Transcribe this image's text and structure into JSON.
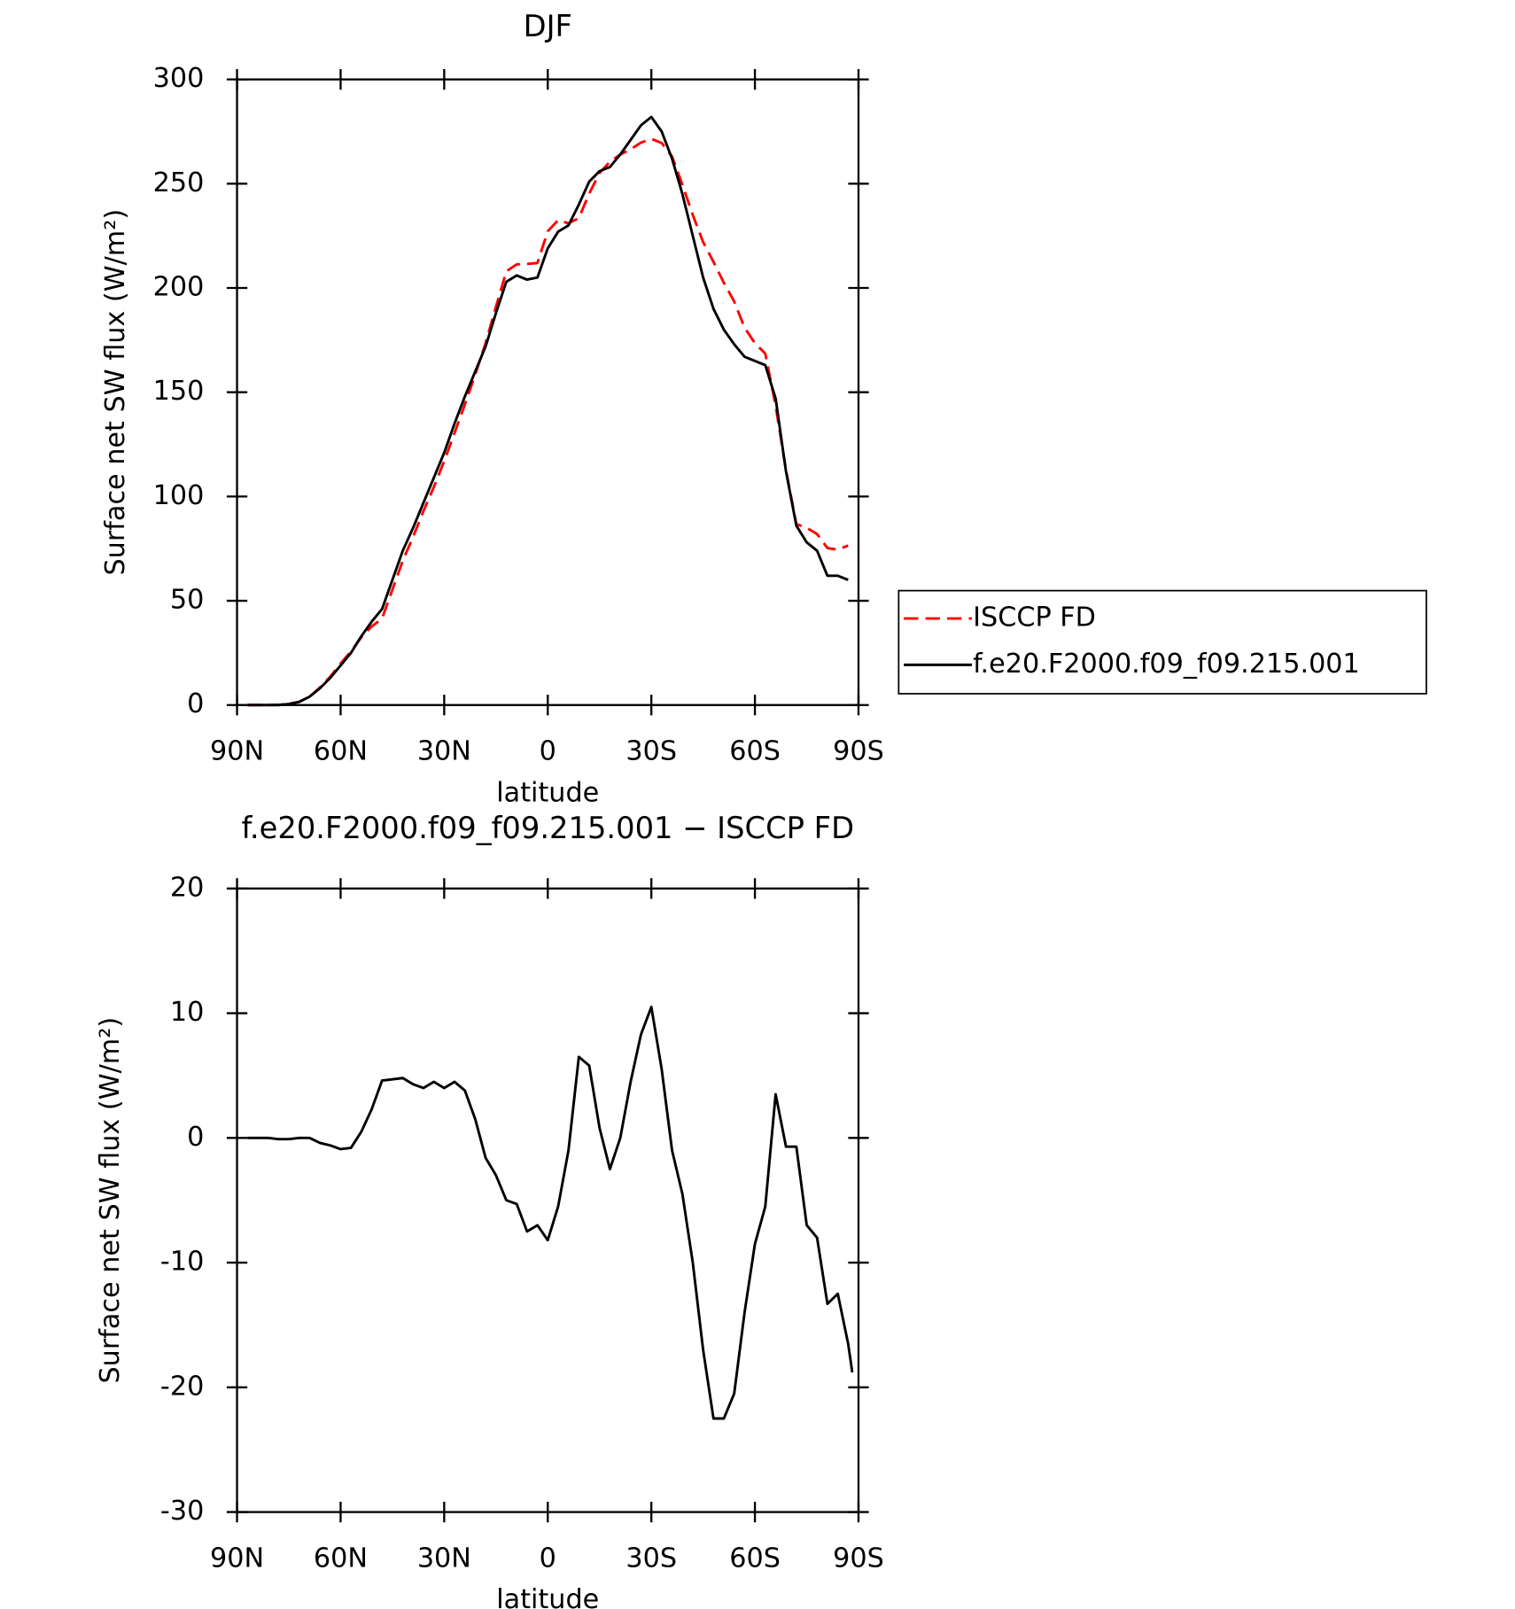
{
  "chart_data": [
    {
      "type": "line",
      "title": "DJF",
      "xlabel": "latitude",
      "ylabel": "Surface net SW flux (W/m²)",
      "x": [
        87,
        84,
        81,
        78,
        75,
        72,
        69,
        66,
        63,
        60,
        57,
        54,
        51,
        48,
        45,
        42,
        39,
        36,
        33,
        30,
        27,
        24,
        21,
        18,
        15,
        12,
        9,
        6,
        3,
        0,
        -3,
        -6,
        -9,
        -12,
        -15,
        -18,
        -21,
        -24,
        -27,
        -30,
        -33,
        -36,
        -39,
        -42,
        -45,
        -48,
        -51,
        -54,
        -57,
        -60,
        -63,
        -66,
        -69,
        -72,
        -75,
        -78,
        -81,
        -84,
        -87
      ],
      "series": [
        {
          "name": "ISCCP FD",
          "color": "#ff0000",
          "dash": true,
          "values": [
            0,
            0,
            0,
            0.1,
            0.6,
            1.5,
            4,
            8.4,
            13.6,
            19.9,
            25.8,
            32.5,
            37.7,
            41.4,
            55.3,
            69.2,
            80.7,
            93,
            104.5,
            117,
            130.5,
            144.2,
            158.5,
            173.6,
            191,
            208,
            211.3,
            211.5,
            212,
            227.2,
            232.5,
            231,
            233.5,
            245.2,
            255.2,
            260.5,
            264,
            266.5,
            269.7,
            271.5,
            269.5,
            263,
            249.5,
            235,
            222,
            212.5,
            202.5,
            193.5,
            181,
            173.5,
            168.5,
            143.5,
            112.7,
            86.7,
            85,
            82,
            75.3,
            74.5,
            76.5
          ]
        },
        {
          "name": "f.e20.F2000.f09_f09.215.001",
          "color": "#000000",
          "dash": false,
          "values": [
            0,
            0,
            0,
            0,
            0.5,
            1.5,
            4,
            8,
            13,
            19,
            25,
            33,
            40,
            46,
            60,
            74,
            85,
            97,
            109,
            121,
            135,
            148,
            160,
            172,
            188,
            203,
            206,
            204,
            205,
            219,
            227,
            230,
            240,
            251,
            256,
            258,
            264,
            271,
            278,
            282,
            275,
            262,
            245,
            225,
            205,
            190,
            180,
            173,
            167,
            165,
            163,
            147,
            112,
            86,
            78,
            74,
            62,
            62,
            60
          ]
        }
      ],
      "xlim": [
        90,
        -90
      ],
      "xticks": [
        {
          "value": 90,
          "label": "90N"
        },
        {
          "value": 60,
          "label": "60N"
        },
        {
          "value": 30,
          "label": "30N"
        },
        0,
        {
          "value": -30,
          "label": "30S"
        },
        {
          "value": -60,
          "label": "60S"
        },
        {
          "value": -90,
          "label": "90S"
        }
      ],
      "ylim": [
        0,
        300
      ],
      "yticks": [
        0,
        50,
        100,
        150,
        200,
        250,
        300
      ],
      "legend": "right"
    },
    {
      "type": "line",
      "title": "f.e20.F2000.f09_f09.215.001 − ISCCP FD",
      "xlabel": "latitude",
      "ylabel": "Surface net SW flux (W/m²)",
      "x": [
        87,
        84,
        81,
        78,
        75,
        72,
        69,
        66,
        63,
        60,
        57,
        54,
        51,
        48,
        45,
        42,
        39,
        36,
        33,
        30,
        27,
        24,
        21,
        18,
        15,
        12,
        9,
        6,
        3,
        0,
        -3,
        -6,
        -9,
        -12,
        -15,
        -18,
        -21,
        -24,
        -27,
        -30,
        -33,
        -36,
        -39,
        -42,
        -45,
        -48,
        -51,
        -54,
        -57,
        -60,
        -63,
        -66,
        -69,
        -72,
        -75,
        -78,
        -81,
        -84,
        -87,
        -88.2
      ],
      "series": [
        {
          "color": "#000000",
          "dash": false,
          "values": [
            0,
            0,
            0,
            -0.1,
            -0.1,
            0,
            0,
            -0.4,
            -0.6,
            -0.9,
            -0.8,
            0.5,
            2.3,
            4.6,
            4.7,
            4.8,
            4.3,
            4,
            4.5,
            4,
            4.5,
            3.8,
            1.5,
            -1.6,
            -3,
            -5,
            -5.3,
            -7.5,
            -7,
            -8.2,
            -5.5,
            -1,
            6.5,
            5.8,
            0.8,
            -2.5,
            0,
            4.5,
            8.3,
            10.5,
            5.5,
            -1,
            -4.5,
            -10,
            -17,
            -22.5,
            -22.5,
            -20.5,
            -14,
            -8.5,
            -5.5,
            3.5,
            -0.7,
            -0.7,
            -7,
            -8,
            -13.3,
            -12.5,
            -16.5,
            -18.8
          ]
        }
      ],
      "xlim": [
        90,
        -90
      ],
      "xticks": [
        {
          "value": 90,
          "label": "90N"
        },
        {
          "value": 60,
          "label": "60N"
        },
        {
          "value": 30,
          "label": "30N"
        },
        0,
        {
          "value": -30,
          "label": "30S"
        },
        {
          "value": -60,
          "label": "60S"
        },
        {
          "value": -90,
          "label": "90S"
        }
      ],
      "ylim": [
        -30,
        20
      ],
      "yticks": [
        -30,
        -20,
        -10,
        0,
        10,
        20
      ]
    }
  ]
}
